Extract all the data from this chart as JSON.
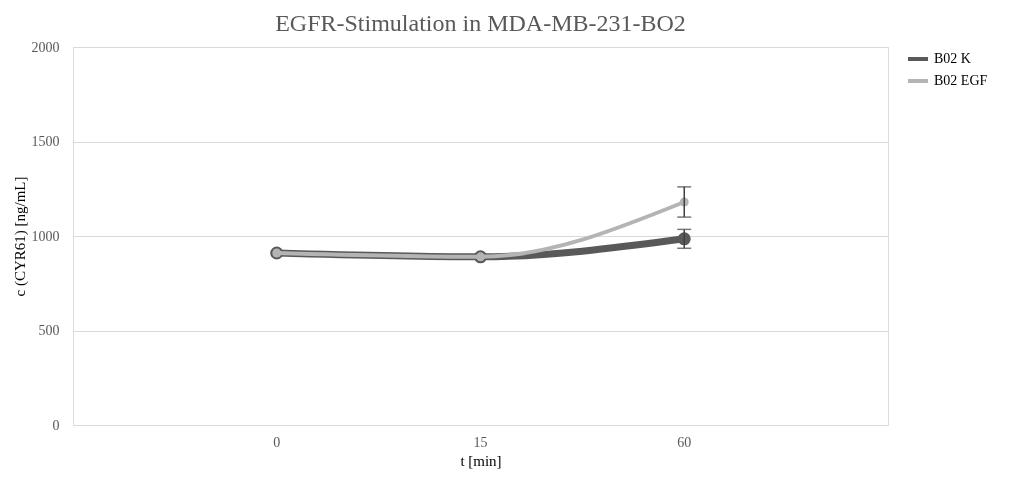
{
  "chart_data": {
    "type": "line",
    "title": "EGFR-Stimulation in MDA-MB-231-BO2",
    "xlabel": "t [min]",
    "ylabel": "c (CYR61) [ng/mL]",
    "categories": [
      "0",
      "15",
      "60"
    ],
    "series": [
      {
        "name": "B02 K",
        "color": "#595959",
        "values": [
          910,
          890,
          985
        ],
        "errors": [
          null,
          null,
          50
        ]
      },
      {
        "name": "B02 EGF",
        "color": "#b4b4b4",
        "values": [
          910,
          890,
          1180
        ],
        "errors": [
          null,
          null,
          80
        ]
      }
    ],
    "ylim": [
      0,
      2000
    ],
    "yticks": [
      0,
      500,
      1000,
      1500,
      2000
    ],
    "grid": "y",
    "legend": "right",
    "marker": "circle",
    "line_style": "solid"
  }
}
